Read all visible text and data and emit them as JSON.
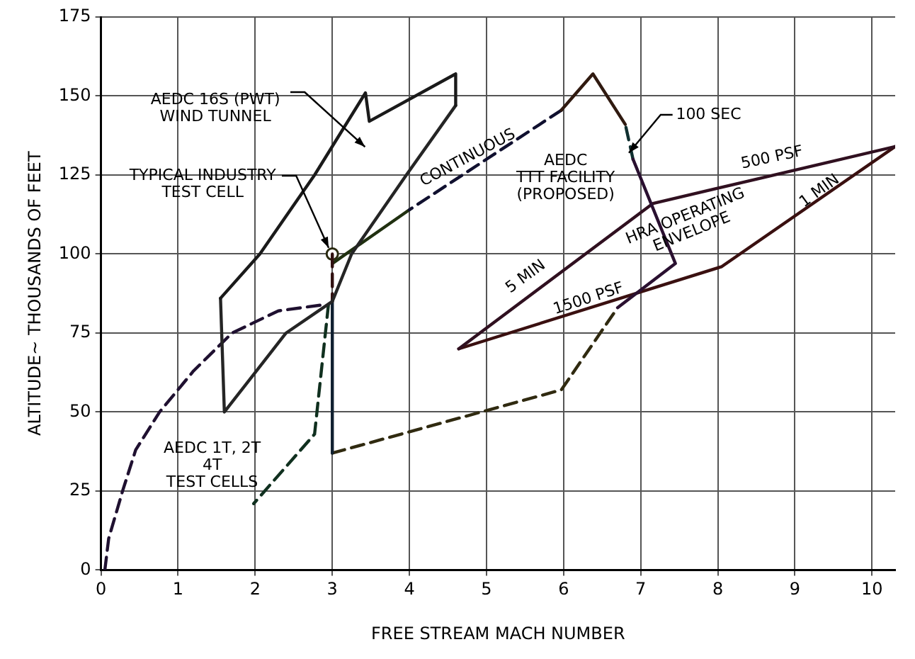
{
  "chart_data": {
    "type": "line",
    "xlabel": "FREE STREAM MACH NUMBER",
    "ylabel": "ALTITUDE~ THOUSANDS OF FEET",
    "xlim": [
      0,
      10.3
    ],
    "xticks": [
      0,
      1,
      2,
      3,
      4,
      5,
      6,
      7,
      8,
      9,
      10
    ],
    "ylim": [
      0,
      175
    ],
    "yticks": [
      0,
      25,
      50,
      75,
      100,
      125,
      150,
      175
    ],
    "grid": true,
    "legend": false,
    "series": [
      {
        "type": "line",
        "color": "#1a1a1a",
        "line_style": "solid",
        "marker": "none",
        "x": [
          1.55,
          2.06,
          2.77,
          3.43,
          3.48,
          4.6,
          4.6
        ],
        "values": [
          86,
          100,
          125,
          151,
          142,
          157,
          147
        ]
      },
      {
        "type": "line",
        "color": "#252525",
        "line_style": "solid",
        "marker": "none",
        "x": [
          1.55,
          1.6,
          2.4,
          3.0,
          3.25,
          3.96,
          4.6
        ],
        "values": [
          86,
          50,
          75,
          85,
          100,
          125,
          147
        ]
      },
      {
        "type": "line",
        "color": "#1f1030",
        "line_style": "dashed",
        "marker": "none",
        "x": [
          0.05,
          0.1,
          0.28,
          0.45,
          0.76,
          1.2,
          1.7,
          2.3,
          2.9
        ],
        "values": [
          0,
          10,
          25,
          38,
          50,
          63,
          75,
          82,
          84
        ]
      },
      {
        "type": "line",
        "color": "#10301f",
        "line_style": "dashed",
        "marker": "none",
        "x": [
          2.95,
          2.77,
          1.98
        ],
        "values": [
          84,
          43,
          21
        ]
      },
      {
        "type": "line",
        "color": "#301010",
        "line_style": "dashed",
        "marker": "none",
        "x": [
          3.0,
          3.0
        ],
        "values": [
          100,
          85
        ]
      },
      {
        "type": "line",
        "color": "#102030",
        "line_style": "solid",
        "marker": "none",
        "x": [
          3.0,
          3.0
        ],
        "values": [
          85,
          37
        ]
      },
      {
        "type": "line",
        "color": "#302a10",
        "line_style": "dashed",
        "marker": "none",
        "x": [
          3.0,
          5.97,
          6.7
        ],
        "values": [
          37,
          57,
          83
        ]
      },
      {
        "type": "line",
        "color": "#2a1030",
        "line_style": "solid",
        "marker": "none",
        "x": [
          6.7,
          7.45,
          6.9
        ],
        "values": [
          83,
          97,
          130
        ]
      },
      {
        "type": "line",
        "color": "#103030",
        "line_style": "dashed",
        "marker": "none",
        "x": [
          6.9,
          6.8
        ],
        "values": [
          130,
          141
        ]
      },
      {
        "type": "line",
        "color": "#301a10",
        "line_style": "solid",
        "marker": "none",
        "x": [
          6.8,
          6.38,
          5.97
        ],
        "values": [
          141,
          157,
          145.5
        ]
      },
      {
        "type": "line",
        "color": "#10102f",
        "line_style": "dashed",
        "marker": "none",
        "x": [
          5.97,
          4.0
        ],
        "values": [
          145.5,
          114
        ]
      },
      {
        "type": "line",
        "color": "#203010",
        "line_style": "solid",
        "marker": "none",
        "x": [
          4.0,
          3.0
        ],
        "values": [
          114,
          97
        ]
      },
      {
        "type": "line",
        "color": "#301020",
        "line_style": "solid",
        "marker": "none",
        "x": [
          4.64,
          7.16,
          10.3
        ],
        "values": [
          70,
          116,
          134
        ]
      },
      {
        "type": "line",
        "color": "#3a1010",
        "line_style": "solid",
        "marker": "none",
        "x": [
          4.64,
          8.05,
          10.3
        ],
        "values": [
          70,
          96,
          134
        ]
      },
      {
        "type": "scatter",
        "color": "#2a2a10",
        "marker": "circle",
        "x": [
          3.0
        ],
        "values": [
          100
        ]
      }
    ],
    "annotations": [
      "AEDC 16S (PWT)\nWIND TUNNEL",
      {
        "text": "TYPICAL INDUSTRY\nTEST CELL",
        "x": 3.0,
        "y": 100
      },
      "CONTINUOUS",
      "AEDC\nTTT FACILITY\n(PROPOSED)",
      "100 SEC",
      "500 PSF",
      "1 MIN",
      "HRA OPERATING\nENVELOPE",
      "5 MIN",
      "1500 PSF",
      "AEDC 1T, 2T\n4T\nTEST CELLS"
    ]
  }
}
